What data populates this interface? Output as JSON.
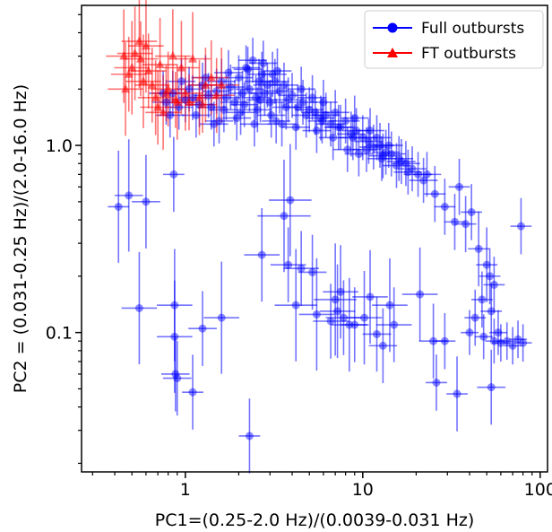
{
  "chart_data": {
    "type": "scatter",
    "xlabel": "PC1=(0.25-2.0 Hz)/(0.0039-0.031 Hz)",
    "ylabel": "PC2 = (0.031-0.25 Hz)/(2.0-16.0 Hz)",
    "xscale": "log",
    "yscale": "log",
    "xlim": [
      0.26,
      110
    ],
    "ylim": [
      0.018,
      5.6
    ],
    "x_ticks": [
      {
        "value": 1,
        "label": "1"
      },
      {
        "value": 10,
        "label": "10"
      },
      {
        "value": 100,
        "label": "100"
      }
    ],
    "y_ticks": [
      {
        "value": 0.1,
        "label": "0.1"
      },
      {
        "value": 1.0,
        "label": "1.0"
      }
    ],
    "grid": false,
    "legend_position": "top-right",
    "series": [
      {
        "name": "Full outbursts",
        "color": "#0000ff",
        "marker": "circle",
        "points": [
          [
            0.42,
            0.47,
            0.06,
            0.3
          ],
          [
            0.48,
            0.54,
            0.08,
            0.3
          ],
          [
            0.6,
            0.5,
            0.08,
            0.25
          ],
          [
            0.55,
            0.135,
            0.1,
            0.3
          ],
          [
            0.86,
            0.7,
            0.06,
            0.2
          ],
          [
            0.87,
            0.14,
            0.1,
            0.3
          ],
          [
            0.87,
            0.095,
            0.1,
            0.3
          ],
          [
            0.88,
            0.06,
            0.08,
            0.2
          ],
          [
            0.9,
            0.057,
            0.08,
            0.2
          ],
          [
            1.1,
            0.048,
            0.06,
            0.2
          ],
          [
            1.25,
            0.105,
            0.08,
            0.2
          ],
          [
            1.6,
            0.12,
            0.1,
            0.3
          ],
          [
            2.3,
            0.028,
            0.06,
            0.2
          ],
          [
            2.7,
            0.26,
            0.1,
            0.25
          ],
          [
            3.6,
            0.42,
            0.15,
            0.3
          ],
          [
            3.9,
            0.51,
            0.12,
            0.3
          ],
          [
            3.8,
            0.23,
            0.1,
            0.2
          ],
          [
            4.2,
            0.14,
            0.12,
            0.3
          ],
          [
            4.5,
            0.22,
            0.1,
            0.2
          ],
          [
            5.2,
            0.21,
            0.08,
            0.2
          ],
          [
            5.5,
            0.125,
            0.1,
            0.3
          ],
          [
            6.6,
            0.115,
            0.1,
            0.2
          ],
          [
            7.0,
            0.15,
            0.12,
            0.3
          ],
          [
            7.2,
            0.13,
            0.1,
            0.25
          ],
          [
            7.5,
            0.165,
            0.1,
            0.25
          ],
          [
            7.8,
            0.12,
            0.1,
            0.2
          ],
          [
            8.4,
            0.11,
            0.1,
            0.25
          ],
          [
            9.0,
            0.11,
            0.08,
            0.2
          ],
          [
            10.2,
            0.12,
            0.1,
            0.25
          ],
          [
            11.0,
            0.155,
            0.1,
            0.25
          ],
          [
            12.0,
            0.098,
            0.08,
            0.2
          ],
          [
            13.0,
            0.085,
            0.08,
            0.2
          ],
          [
            14.2,
            0.14,
            0.1,
            0.25
          ],
          [
            15.0,
            0.11,
            0.1,
            0.2
          ],
          [
            21.0,
            0.16,
            0.1,
            0.25
          ],
          [
            25.0,
            0.09,
            0.08,
            0.2
          ],
          [
            26.0,
            0.054,
            0.06,
            0.15
          ],
          [
            29.0,
            0.09,
            0.06,
            0.15
          ],
          [
            34.0,
            0.047,
            0.06,
            0.2
          ],
          [
            53.0,
            0.051,
            0.08,
            0.2
          ],
          [
            25.5,
            0.55,
            0.06,
            0.15
          ],
          [
            29.0,
            0.47,
            0.06,
            0.15
          ],
          [
            33.0,
            0.39,
            0.06,
            0.15
          ],
          [
            35.0,
            0.6,
            0.06,
            0.15
          ],
          [
            38.0,
            0.38,
            0.06,
            0.15
          ],
          [
            41.0,
            0.44,
            0.06,
            0.15
          ],
          [
            45.0,
            0.28,
            0.06,
            0.2
          ],
          [
            50.0,
            0.23,
            0.06,
            0.2
          ],
          [
            52.0,
            0.2,
            0.06,
            0.15
          ],
          [
            55.0,
            0.18,
            0.06,
            0.15
          ],
          [
            47.0,
            0.15,
            0.06,
            0.15
          ],
          [
            53.0,
            0.13,
            0.06,
            0.15
          ],
          [
            43.0,
            0.12,
            0.06,
            0.15
          ],
          [
            78.0,
            0.37,
            0.06,
            0.15
          ],
          [
            40.0,
            0.1,
            0.05,
            0.12
          ],
          [
            48.0,
            0.095,
            0.05,
            0.12
          ],
          [
            55.0,
            0.09,
            0.05,
            0.12
          ],
          [
            60.0,
            0.088,
            0.05,
            0.1
          ],
          [
            65.0,
            0.09,
            0.05,
            0.1
          ],
          [
            70.0,
            0.085,
            0.05,
            0.1
          ],
          [
            75.0,
            0.092,
            0.05,
            0.1
          ],
          [
            80.0,
            0.088,
            0.05,
            0.1
          ],
          [
            58.0,
            0.1,
            0.05,
            0.12
          ],
          [
            0.78,
            1.7,
            0.08,
            0.12
          ],
          [
            0.85,
            1.9,
            0.08,
            0.12
          ],
          [
            0.92,
            1.6,
            0.08,
            0.12
          ],
          [
            1.0,
            1.75,
            0.08,
            0.12
          ],
          [
            1.05,
            2.0,
            0.08,
            0.12
          ],
          [
            1.1,
            1.8,
            0.08,
            0.12
          ],
          [
            1.2,
            1.65,
            0.08,
            0.12
          ],
          [
            1.25,
            2.1,
            0.08,
            0.12
          ],
          [
            1.35,
            1.85,
            0.08,
            0.12
          ],
          [
            1.4,
            1.6,
            0.08,
            0.12
          ],
          [
            1.5,
            1.95,
            0.08,
            0.12
          ],
          [
            1.6,
            2.2,
            0.08,
            0.12
          ],
          [
            1.7,
            1.8,
            0.08,
            0.12
          ],
          [
            1.8,
            2.05,
            0.08,
            0.12
          ],
          [
            1.9,
            1.7,
            0.08,
            0.12
          ],
          [
            2.0,
            2.3,
            0.08,
            0.12
          ],
          [
            2.1,
            1.9,
            0.08,
            0.12
          ],
          [
            2.2,
            2.6,
            0.08,
            0.12
          ],
          [
            2.3,
            2.0,
            0.08,
            0.12
          ],
          [
            2.4,
            2.85,
            0.08,
            0.12
          ],
          [
            2.5,
            1.8,
            0.08,
            0.12
          ],
          [
            2.6,
            2.2,
            0.08,
            0.12
          ],
          [
            2.7,
            2.4,
            0.08,
            0.12
          ],
          [
            2.8,
            1.9,
            0.08,
            0.12
          ],
          [
            2.9,
            2.1,
            0.08,
            0.12
          ],
          [
            3.0,
            1.7,
            0.08,
            0.12
          ],
          [
            3.2,
            2.2,
            0.08,
            0.12
          ],
          [
            3.4,
            1.95,
            0.08,
            0.12
          ],
          [
            3.6,
            2.1,
            0.08,
            0.12
          ],
          [
            3.8,
            1.75,
            0.08,
            0.12
          ],
          [
            4.0,
            1.85,
            0.08,
            0.12
          ],
          [
            4.3,
            1.6,
            0.08,
            0.12
          ],
          [
            4.6,
            1.7,
            0.08,
            0.12
          ],
          [
            5.0,
            1.55,
            0.08,
            0.12
          ],
          [
            5.4,
            1.5,
            0.08,
            0.12
          ],
          [
            5.8,
            1.4,
            0.08,
            0.12
          ],
          [
            6.2,
            1.45,
            0.08,
            0.12
          ],
          [
            6.6,
            1.3,
            0.08,
            0.12
          ],
          [
            7.0,
            1.5,
            0.08,
            0.12
          ],
          [
            7.5,
            1.25,
            0.08,
            0.12
          ],
          [
            8.0,
            1.35,
            0.08,
            0.12
          ],
          [
            8.6,
            1.15,
            0.08,
            0.12
          ],
          [
            9.2,
            1.2,
            0.08,
            0.12
          ],
          [
            10.0,
            1.1,
            0.08,
            0.12
          ],
          [
            10.8,
            1.05,
            0.08,
            0.12
          ],
          [
            11.5,
            0.98,
            0.08,
            0.12
          ],
          [
            12.5,
            1.0,
            0.08,
            0.12
          ],
          [
            13.5,
            0.92,
            0.08,
            0.12
          ],
          [
            14.5,
            0.9,
            0.08,
            0.12
          ],
          [
            16.0,
            0.85,
            0.08,
            0.12
          ],
          [
            17.5,
            0.8,
            0.08,
            0.12
          ],
          [
            19.0,
            0.75,
            0.08,
            0.12
          ],
          [
            20.5,
            0.7,
            0.08,
            0.12
          ],
          [
            22.0,
            0.65,
            0.08,
            0.12
          ],
          [
            11.0,
            1.2,
            0.08,
            0.12
          ],
          [
            9.0,
            1.4,
            0.08,
            0.12
          ],
          [
            12.0,
            1.1,
            0.08,
            0.12
          ],
          [
            14.0,
            1.0,
            0.08,
            0.12
          ],
          [
            6.0,
            1.7,
            0.08,
            0.12
          ],
          [
            5.2,
            1.8,
            0.08,
            0.12
          ],
          [
            4.5,
            2.0,
            0.08,
            0.12
          ],
          [
            3.3,
            2.5,
            0.08,
            0.12
          ],
          [
            1.15,
            1.45,
            0.08,
            0.12
          ],
          [
            1.55,
            1.35,
            0.08,
            0.12
          ],
          [
            2.05,
            1.5,
            0.08,
            0.12
          ],
          [
            2.55,
            1.55,
            0.08,
            0.12
          ],
          [
            3.05,
            1.45,
            0.08,
            0.12
          ],
          [
            3.5,
            1.3,
            0.08,
            0.12
          ],
          [
            4.2,
            1.25,
            0.08,
            0.12
          ],
          [
            5.5,
            1.2,
            0.08,
            0.12
          ],
          [
            6.8,
            1.1,
            0.08,
            0.12
          ],
          [
            8.2,
            0.95,
            0.08,
            0.12
          ],
          [
            9.5,
            0.9,
            0.08,
            0.12
          ],
          [
            12.8,
            0.85,
            0.08,
            0.12
          ],
          [
            15.5,
            0.78,
            0.08,
            0.12
          ],
          [
            18.0,
            0.72,
            0.08,
            0.12
          ],
          [
            0.95,
            2.2,
            0.08,
            0.12
          ],
          [
            1.3,
            2.3,
            0.08,
            0.12
          ],
          [
            1.75,
            2.45,
            0.08,
            0.12
          ],
          [
            2.25,
            2.55,
            0.08,
            0.12
          ],
          [
            2.75,
            2.75,
            0.08,
            0.12
          ],
          [
            3.1,
            2.4,
            0.08,
            0.12
          ],
          [
            0.75,
            1.9,
            0.08,
            0.12
          ],
          [
            0.82,
            1.45,
            0.08,
            0.12
          ],
          [
            1.65,
            1.55,
            0.08,
            0.12
          ],
          [
            2.15,
            1.65,
            0.08,
            0.12
          ],
          [
            2.65,
            1.75,
            0.08,
            0.12
          ],
          [
            3.7,
            1.6,
            0.08,
            0.12
          ],
          [
            4.8,
            1.45,
            0.08,
            0.12
          ],
          [
            5.9,
            1.35,
            0.08,
            0.12
          ],
          [
            7.3,
            1.25,
            0.08,
            0.12
          ],
          [
            8.8,
            1.1,
            0.08,
            0.12
          ],
          [
            10.5,
            0.95,
            0.08,
            0.12
          ],
          [
            13.0,
            0.88,
            0.08,
            0.12
          ],
          [
            16.5,
            0.82,
            0.08,
            0.12
          ],
          [
            23.0,
            0.7,
            0.08,
            0.12
          ],
          [
            1.45,
            1.3,
            0.08,
            0.12
          ],
          [
            1.95,
            1.4,
            0.08,
            0.12
          ],
          [
            2.45,
            1.3,
            0.08,
            0.12
          ],
          [
            3.25,
            1.35,
            0.08,
            0.12
          ]
        ]
      },
      {
        "name": "FT outbursts",
        "color": "#ff0000",
        "marker": "triangle",
        "points": [
          [
            0.45,
            3.0,
            0.1,
            0.25
          ],
          [
            0.46,
            2.0,
            0.1,
            0.25
          ],
          [
            0.48,
            2.4,
            0.1,
            0.2
          ],
          [
            0.5,
            2.6,
            0.1,
            0.25
          ],
          [
            0.52,
            3.1,
            0.1,
            0.25
          ],
          [
            0.55,
            3.6,
            0.1,
            0.25
          ],
          [
            0.56,
            2.9,
            0.1,
            0.2
          ],
          [
            0.58,
            2.2,
            0.1,
            0.25
          ],
          [
            0.6,
            3.4,
            0.1,
            0.25
          ],
          [
            0.62,
            2.5,
            0.1,
            0.2
          ],
          [
            0.65,
            2.1,
            0.1,
            0.2
          ],
          [
            0.68,
            1.8,
            0.1,
            0.2
          ],
          [
            0.7,
            1.6,
            0.1,
            0.2
          ],
          [
            0.72,
            2.7,
            0.1,
            0.25
          ],
          [
            0.75,
            1.5,
            0.1,
            0.2
          ],
          [
            0.8,
            2.0,
            0.1,
            0.2
          ],
          [
            0.85,
            3.0,
            0.1,
            0.25
          ],
          [
            0.9,
            1.7,
            0.1,
            0.2
          ],
          [
            0.95,
            2.6,
            0.1,
            0.25
          ],
          [
            1.0,
            1.9,
            0.1,
            0.2
          ],
          [
            1.1,
            2.9,
            0.1,
            0.25
          ],
          [
            1.2,
            1.8,
            0.1,
            0.2
          ],
          [
            1.3,
            2.1,
            0.1,
            0.2
          ],
          [
            1.4,
            2.3,
            0.1,
            0.2
          ],
          [
            1.5,
            1.85,
            0.1,
            0.2
          ],
          [
            1.6,
            2.1,
            0.1,
            0.2
          ],
          [
            0.78,
            1.9,
            0.08,
            0.15
          ],
          [
            0.88,
            1.75,
            0.08,
            0.15
          ],
          [
            1.05,
            1.7,
            0.08,
            0.15
          ],
          [
            1.25,
            1.65,
            0.08,
            0.15
          ]
        ]
      }
    ]
  }
}
